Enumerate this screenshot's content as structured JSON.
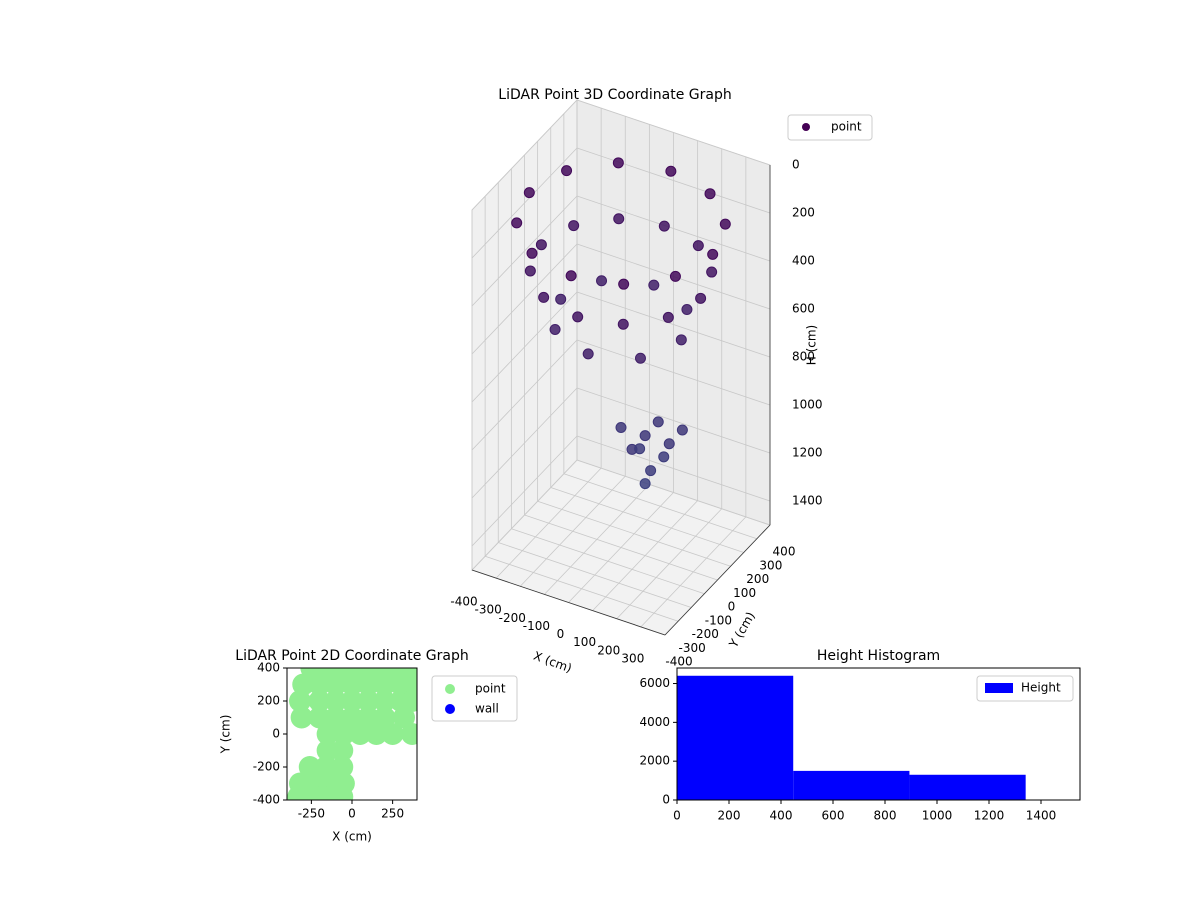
{
  "chart_data": [
    {
      "type": "scatter3d",
      "title": "LiDAR Point 3D Coordinate Graph",
      "xlabel": "X (cm)",
      "ylabel": "Y (cm)",
      "zlabel": "H (cm)",
      "xlim": [
        -400,
        400
      ],
      "ylim": [
        -400,
        400
      ],
      "zlim": [
        0,
        1500
      ],
      "z_inverted": true,
      "xticks": [
        -400,
        -300,
        -200,
        -100,
        0,
        100,
        200,
        300
      ],
      "yticks": [
        -400,
        -300,
        -200,
        -100,
        0,
        100,
        200,
        300,
        400
      ],
      "zticks": [
        0,
        200,
        400,
        600,
        800,
        1000,
        1200,
        1400
      ],
      "grid": true,
      "legend": "upper right",
      "cmap": [
        "#440154",
        "#3b528b"
      ],
      "series": [
        {
          "name": "point",
          "color": "#440154",
          "x": [
            380,
            329,
            190,
            0,
            -190,
            -329,
            -380,
            -329,
            -190,
            0,
            190,
            329,
            330,
            286,
            165,
            0,
            -165,
            -286,
            -330,
            -286,
            -165,
            0,
            165,
            286,
            250,
            177,
            0,
            -177,
            -250,
            -177,
            0,
            177,
            0,
            100,
            200,
            100,
            100,
            200,
            50,
            150,
            150,
            100
          ],
          "y": [
            0,
            190,
            329,
            380,
            329,
            190,
            0,
            -190,
            -329,
            -380,
            -329,
            -190,
            0,
            165,
            286,
            330,
            286,
            165,
            0,
            -165,
            -286,
            -330,
            -286,
            -165,
            0,
            177,
            250,
            177,
            0,
            -177,
            -250,
            -177,
            0,
            0,
            0,
            100,
            -100,
            100,
            50,
            -50,
            50,
            0
          ],
          "z": [
            150,
            150,
            150,
            150,
            150,
            150,
            150,
            150,
            150,
            150,
            150,
            150,
            350,
            350,
            350,
            350,
            350,
            350,
            350,
            350,
            350,
            350,
            350,
            350,
            550,
            550,
            550,
            550,
            550,
            550,
            550,
            550,
            1000,
            1000,
            1000,
            1000,
            1000,
            1000,
            1100,
            1100,
            1100,
            1200
          ]
        }
      ]
    },
    {
      "type": "scatter",
      "title": "LiDAR Point 2D Coordinate Graph",
      "xlabel": "X (cm)",
      "ylabel": "Y (cm)",
      "xlim": [
        -400,
        400
      ],
      "ylim": [
        -400,
        400
      ],
      "xticks": [
        -250,
        0,
        250
      ],
      "yticks": [
        -400,
        -200,
        0,
        200,
        400
      ],
      "legend": "outside right",
      "series": [
        {
          "name": "point",
          "color": "#90ee90",
          "x": [
            -250,
            -150,
            -50,
            50,
            150,
            250,
            350,
            -300,
            -200,
            -100,
            0,
            100,
            200,
            300,
            380,
            -320,
            -200,
            -100,
            0,
            100,
            200,
            300,
            370,
            -310,
            -200,
            -100,
            0,
            100,
            200,
            320,
            -150,
            -50,
            50,
            150,
            250,
            370,
            -150,
            -60,
            -260,
            -160,
            -60,
            -320,
            -220,
            -120,
            -50,
            -330,
            -230,
            -130,
            -60
          ],
          "y": [
            400,
            400,
            400,
            400,
            400,
            400,
            400,
            300,
            300,
            300,
            300,
            300,
            300,
            300,
            300,
            200,
            200,
            200,
            200,
            200,
            200,
            200,
            200,
            100,
            100,
            100,
            100,
            100,
            100,
            100,
            0,
            0,
            0,
            0,
            0,
            0,
            -100,
            -100,
            -200,
            -200,
            -200,
            -300,
            -300,
            -300,
            -300,
            -380,
            -380,
            -380,
            -380
          ]
        },
        {
          "name": "wall",
          "color": "#0000ff",
          "x": [],
          "y": []
        }
      ]
    },
    {
      "type": "histogram",
      "title": "Height Histogram",
      "xlim": [
        0,
        1550
      ],
      "ylim": [
        0,
        6800
      ],
      "xticks": [
        0,
        200,
        400,
        600,
        800,
        1000,
        1200,
        1400
      ],
      "yticks": [
        0,
        2000,
        4000,
        6000
      ],
      "legend": "upper right",
      "bins": [
        0,
        447,
        894,
        1341
      ],
      "series": [
        {
          "name": "Height",
          "color": "#0000ff",
          "values": [
            6400,
            1500,
            1300
          ]
        }
      ]
    }
  ]
}
